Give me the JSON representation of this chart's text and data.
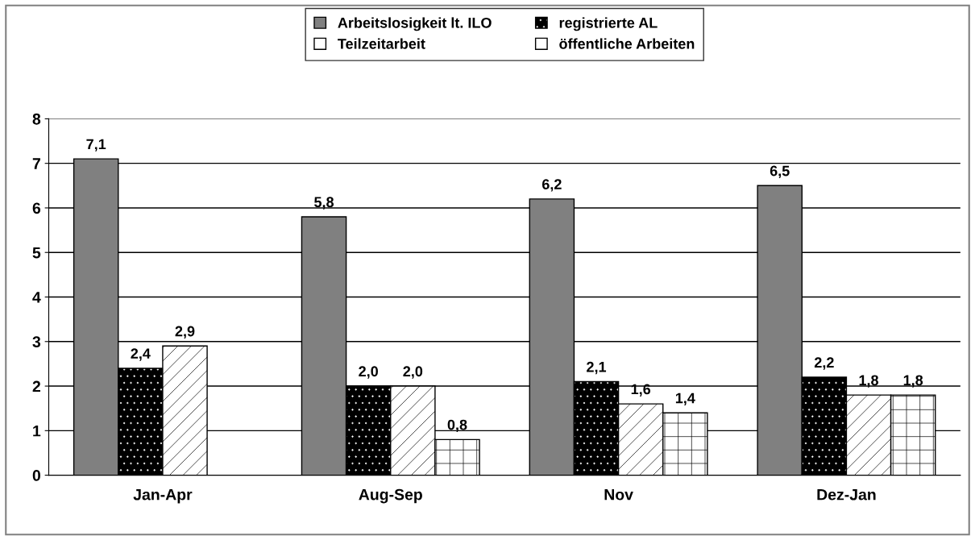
{
  "chart_data": {
    "type": "bar",
    "categories": [
      "Jan-Apr",
      "Aug-Sep",
      "Nov",
      "Dez-Jan"
    ],
    "series": [
      {
        "name": "Arbeitslosigkeit lt. ILO",
        "color": "#808080",
        "values": [
          7.1,
          5.8,
          6.2,
          6.5
        ],
        "value_labels": [
          "7,1",
          "5,8",
          "6,2",
          "6,5"
        ]
      },
      {
        "name": "registrierte AL",
        "color": "#000000",
        "values": [
          2.4,
          2.0,
          2.1,
          2.2
        ],
        "value_labels": [
          "2,4",
          "2,0",
          "2,1",
          "2,2"
        ]
      },
      {
        "name": "Teilzeitarbeit",
        "color": "#ffffff",
        "values": [
          2.9,
          2.0,
          1.6,
          1.8
        ],
        "value_labels": [
          "2,9",
          "2,0",
          "1,6",
          "1,8"
        ]
      },
      {
        "name": "öffentliche Arbeiten",
        "color": "#ffffff",
        "values": [
          null,
          0.8,
          1.4,
          1.8
        ],
        "value_labels": [
          null,
          "0,8",
          "1,4",
          "1,8"
        ]
      }
    ],
    "ylim": [
      0,
      8
    ],
    "yticks": [
      0,
      1,
      2,
      3,
      4,
      5,
      6,
      7,
      8
    ],
    "grid": "y",
    "legend": "top"
  }
}
